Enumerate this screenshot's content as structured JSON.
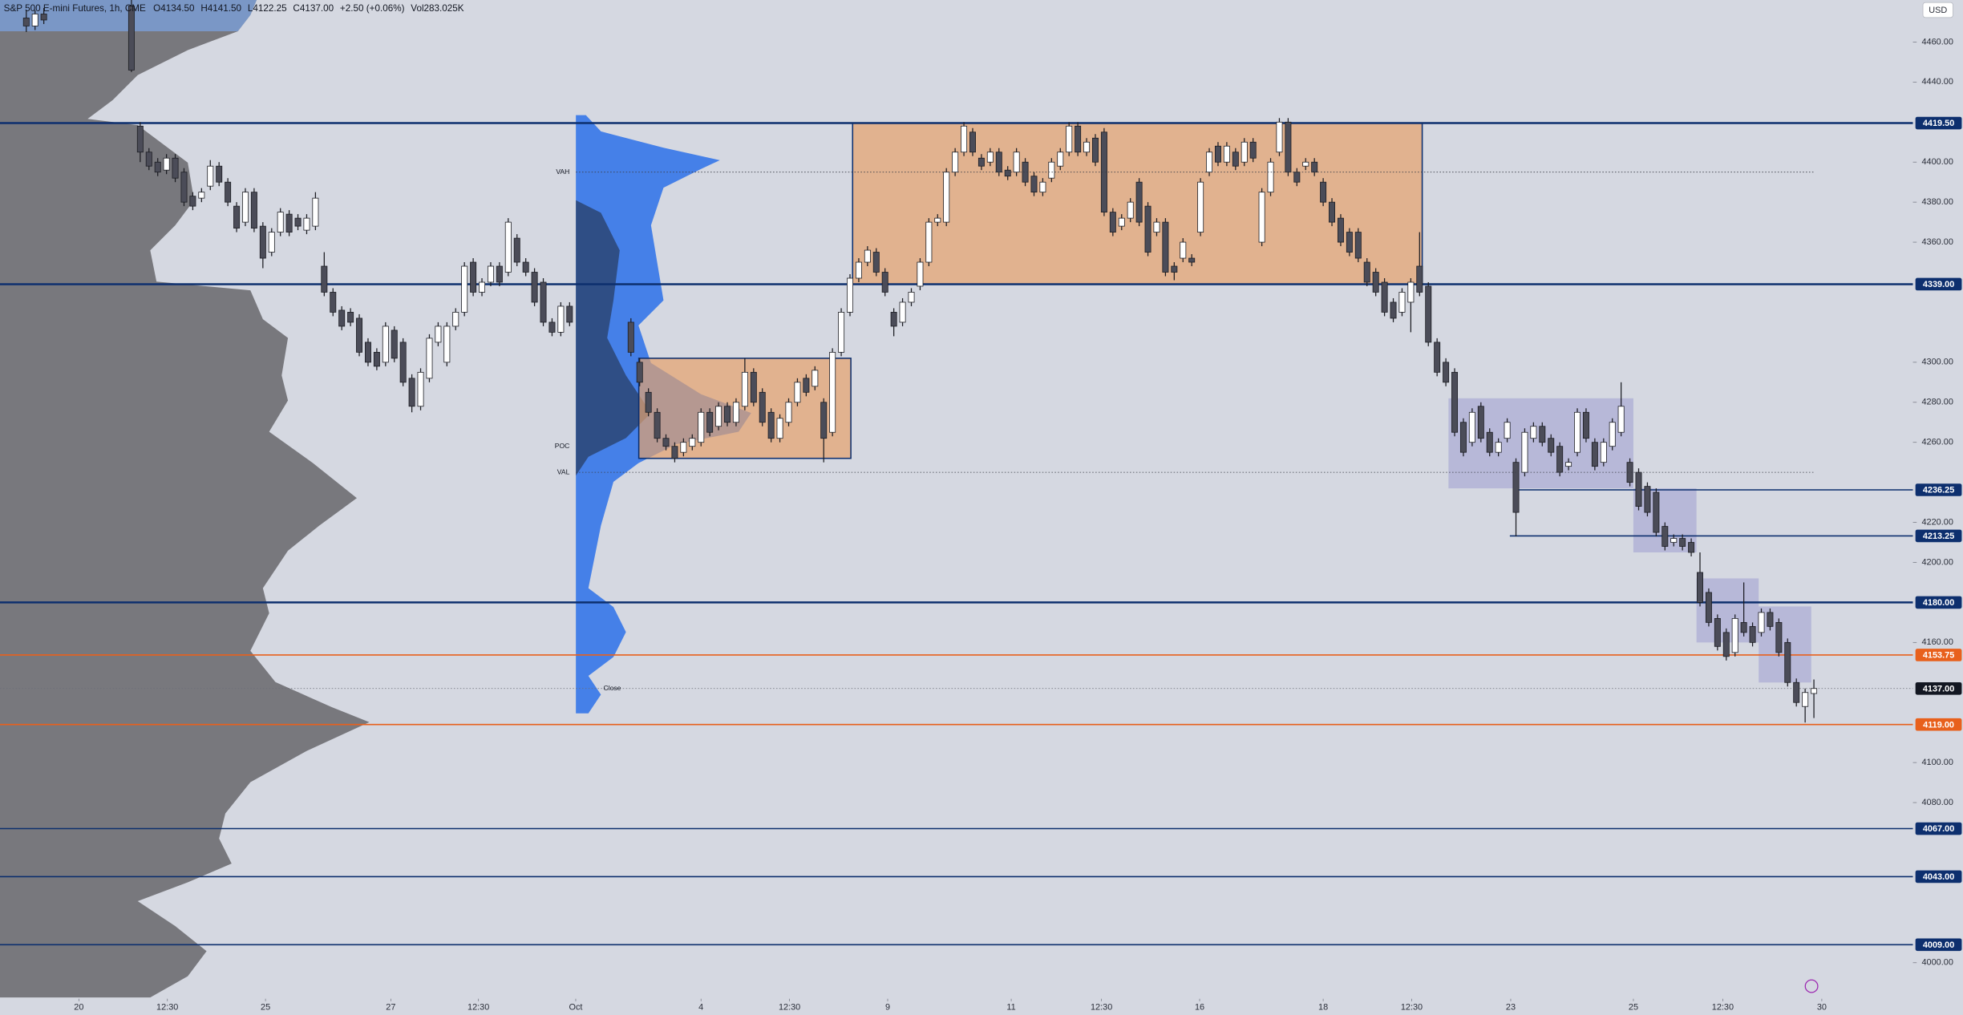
{
  "chart_data": {
    "type": "candlestick",
    "title": "S&P 500 E-mini Futures, 1h, CME",
    "ohlc_text": [
      "O4134.50",
      "H4141.50",
      "L4122.25",
      "C4137.00",
      "+2.50 (+0.06%)",
      "Vol283.025K"
    ],
    "currency": "USD",
    "up_color": "#ffffff",
    "down_color": "#4b4c58",
    "wick_color": "#1b1c22",
    "xlim": [
      0,
      218.3
    ],
    "ylim": [
      3982,
      4481
    ],
    "xticks": [
      {
        "value": 9,
        "label": "20"
      },
      {
        "value": 19.1,
        "label": "12:30"
      },
      {
        "value": 30.3,
        "label": "25"
      },
      {
        "value": 44.6,
        "label": "27"
      },
      {
        "value": 54.6,
        "label": "12:30"
      },
      {
        "value": 65.7,
        "label": "Oct"
      },
      {
        "value": 80,
        "label": "4"
      },
      {
        "value": 90.1,
        "label": "12:30"
      },
      {
        "value": 101.3,
        "label": "9"
      },
      {
        "value": 115.4,
        "label": "11"
      },
      {
        "value": 125.7,
        "label": "12:30"
      },
      {
        "value": 136.9,
        "label": "16"
      },
      {
        "value": 151,
        "label": "18"
      },
      {
        "value": 161.1,
        "label": "12:30"
      },
      {
        "value": 172.4,
        "label": "23"
      },
      {
        "value": 186.4,
        "label": "25"
      },
      {
        "value": 196.6,
        "label": "12:30"
      },
      {
        "value": 207.9,
        "label": "30"
      }
    ],
    "yticks": [
      {
        "value": 4460,
        "label": "4460.00"
      },
      {
        "value": 4440,
        "label": "4440.00"
      },
      {
        "value": 4400,
        "label": "4400.00"
      },
      {
        "value": 4380,
        "label": "4380.00"
      },
      {
        "value": 4360,
        "label": "4360.00"
      },
      {
        "value": 4300,
        "label": "4300.00"
      },
      {
        "value": 4280,
        "label": "4280.00"
      },
      {
        "value": 4260,
        "label": "4260.00"
      },
      {
        "value": 4220,
        "label": "4220.00"
      },
      {
        "value": 4200,
        "label": "4200.00"
      },
      {
        "value": 4160,
        "label": "4160.00"
      },
      {
        "value": 4100,
        "label": "4100.00"
      },
      {
        "value": 4080,
        "label": "4080.00"
      },
      {
        "value": 4000,
        "label": "4000.00"
      }
    ],
    "levels": [
      {
        "value": 4419.5,
        "label": "4419.50",
        "color": "#0d2f6e",
        "style": "thick"
      },
      {
        "value": 4339,
        "label": "4339.00",
        "color": "#0d2f6e",
        "style": "thick"
      },
      {
        "value": 4236.25,
        "label": "4236.25",
        "color": "#0d2f6e",
        "style": "solid",
        "start": 173.3
      },
      {
        "value": 4213.25,
        "label": "4213.25",
        "color": "#0d2f6e",
        "style": "solid",
        "start": 172.3
      },
      {
        "value": 4180,
        "label": "4180.00",
        "color": "#0d2f6e",
        "style": "thick"
      },
      {
        "value": 4153.75,
        "label": "4153.75",
        "color": "#e8601c",
        "style": "solid"
      },
      {
        "value": 4137,
        "label": "4137.00",
        "color": "#131722",
        "style": "dotted"
      },
      {
        "value": 4119,
        "label": "4119.00",
        "color": "#e8601c",
        "style": "solid"
      },
      {
        "value": 4067,
        "label": "4067.00",
        "color": "#0d2f6e",
        "style": "solid"
      },
      {
        "value": 4043,
        "label": "4043.00",
        "color": "#0d2f6e",
        "style": "solid"
      },
      {
        "value": 4009,
        "label": "4009.00",
        "color": "#0d2f6e",
        "style": "solid"
      }
    ],
    "zones": [
      {
        "x": [
          97.3,
          162.3
        ],
        "y": [
          4339,
          4419.5
        ],
        "color": "#e6a36c"
      },
      {
        "x": [
          72.9,
          97.1
        ],
        "y": [
          4252,
          4302
        ],
        "color": "#e6a36c"
      },
      {
        "x": [
          165.3,
          186.4
        ],
        "y": [
          4237,
          4282
        ],
        "color": "#a9abd4"
      },
      {
        "x": [
          186.4,
          193.6
        ],
        "y": [
          4205,
          4237
        ],
        "color": "#a9abd4"
      },
      {
        "x": [
          193.6,
          200.7
        ],
        "y": [
          4160,
          4192
        ],
        "color": "#a9abd4"
      },
      {
        "x": [
          200.7,
          206.7
        ],
        "y": [
          4140,
          4178
        ],
        "color": "#a9abd4"
      }
    ],
    "annotations": [
      {
        "text": "VAH",
        "value": 4395
      },
      {
        "text": "POC",
        "value": 4258
      },
      {
        "text": "VAL",
        "value": 4245
      },
      {
        "text": "Close",
        "value": 4137
      }
    ],
    "x": [
      3,
      4,
      5,
      15,
      16,
      17,
      18,
      19,
      20,
      21,
      22,
      23,
      24,
      25,
      26,
      27,
      28,
      29,
      30,
      31,
      32,
      33,
      34,
      35,
      36,
      37,
      38,
      39,
      40,
      41,
      42,
      43,
      44,
      45,
      46,
      47,
      48,
      49,
      50,
      51,
      52,
      53,
      54,
      55,
      56,
      57,
      58,
      59,
      60,
      61,
      62,
      63,
      64,
      65,
      72,
      73,
      74,
      75,
      76,
      77,
      78,
      79,
      80,
      81,
      82,
      83,
      84,
      85,
      86,
      87,
      88,
      89,
      90,
      91,
      92,
      93,
      94,
      95,
      96,
      97,
      98,
      99,
      100,
      101,
      102,
      103,
      104,
      105,
      106,
      107,
      108,
      109,
      110,
      111,
      112,
      113,
      114,
      115,
      116,
      117,
      118,
      119,
      120,
      121,
      122,
      123,
      124,
      125,
      126,
      127,
      128,
      129,
      130,
      131,
      132,
      133,
      134,
      135,
      136,
      137,
      138,
      139,
      140,
      141,
      142,
      143,
      144,
      145,
      146,
      147,
      148,
      149,
      150,
      151,
      152,
      153,
      154,
      155,
      156,
      157,
      158,
      159,
      160,
      161,
      162,
      163,
      164,
      165,
      166,
      167,
      168,
      169,
      170,
      171,
      172,
      173,
      174,
      175,
      176,
      177,
      178,
      179,
      180,
      181,
      182,
      183,
      184,
      185,
      186,
      187,
      188,
      189,
      190,
      191,
      192,
      193,
      194,
      195,
      196,
      197,
      198,
      199,
      200,
      201,
      202,
      203,
      204,
      205,
      206,
      207
    ],
    "open": [
      4472,
      4468,
      4474,
      4478,
      4418,
      4405,
      4400,
      4396,
      4402,
      4395,
      4383,
      4382,
      4388,
      4398,
      4390,
      4378,
      4370,
      4385,
      4368,
      4355,
      4365,
      4374,
      4372,
      4366,
      4368,
      4348,
      4335,
      4326,
      4325,
      4322,
      4310,
      4305,
      4300,
      4316,
      4310,
      4292,
      4278,
      4292,
      4310,
      4300,
      4318,
      4325,
      4350,
      4335,
      4340,
      4348,
      4345,
      4362,
      4350,
      4345,
      4340,
      4320,
      4315,
      4328,
      4320,
      4300,
      4285,
      4275,
      4262,
      4258,
      4255,
      4258,
      4260,
      4275,
      4268,
      4278,
      4270,
      4278,
      4295,
      4285,
      4275,
      4262,
      4270,
      4280,
      4292,
      4288,
      4280,
      4265,
      4305,
      4325,
      4342,
      4350,
      4355,
      4345,
      4325,
      4320,
      4330,
      4338,
      4350,
      4370,
      4370,
      4395,
      4405,
      4415,
      4402,
      4400,
      4405,
      4396,
      4395,
      4400,
      4393,
      4385,
      4392,
      4398,
      4405,
      4418,
      4405,
      4412,
      4415,
      4375,
      4368,
      4372,
      4390,
      4378,
      4365,
      4370,
      4348,
      4352,
      4352,
      4365,
      4395,
      4408,
      4400,
      4405,
      4400,
      4410,
      4360,
      4385,
      4405,
      4420,
      4395,
      4398,
      4400,
      4390,
      4380,
      4372,
      4365,
      4365,
      4350,
      4345,
      4340,
      4330,
      4325,
      4330,
      4348,
      4338,
      4310,
      4300,
      4295,
      4270,
      4260,
      4278,
      4265,
      4255,
      4262,
      4250,
      4245,
      4262,
      4268,
      4262,
      4258,
      4248,
      4255,
      4275,
      4260,
      4250,
      4258,
      4265,
      4250,
      4245,
      4238,
      4235,
      4218,
      4210,
      4212,
      4210,
      4195,
      4185,
      4172,
      4165,
      4155,
      4170,
      4168,
      4165,
      4175,
      4170,
      4160,
      4140,
      4128,
      4134.5
    ],
    "high": [
      4476,
      4476,
      4477,
      4481,
      4420,
      4407,
      4402,
      4404,
      4404,
      4397,
      4385,
      4387,
      4401,
      4400,
      4392,
      4380,
      4387,
      4387,
      4370,
      4367,
      4377,
      4376,
      4374,
      4374,
      4385,
      4355,
      4337,
      4328,
      4327,
      4324,
      4312,
      4307,
      4320,
      4318,
      4312,
      4294,
      4297,
      4314,
      4320,
      4320,
      4327,
      4350,
      4352,
      4342,
      4350,
      4350,
      4372,
      4364,
      4352,
      4347,
      4342,
      4322,
      4330,
      4330,
      4322,
      4302,
      4287,
      4277,
      4264,
      4260,
      4262,
      4264,
      4277,
      4277,
      4280,
      4280,
      4282,
      4302,
      4297,
      4287,
      4277,
      4274,
      4282,
      4292,
      4294,
      4298,
      4282,
      4307,
      4327,
      4344,
      4352,
      4358,
      4357,
      4347,
      4327,
      4332,
      4337,
      4352,
      4372,
      4374,
      4397,
      4407,
      4420,
      4417,
      4404,
      4407,
      4407,
      4398,
      4407,
      4402,
      4395,
      4392,
      4402,
      4407,
      4420,
      4420,
      4412,
      4414,
      4417,
      4377,
      4374,
      4382,
      4392,
      4380,
      4372,
      4372,
      4350,
      4362,
      4354,
      4392,
      4407,
      4410,
      4410,
      4407,
      4412,
      4412,
      4387,
      4402,
      4422,
      4422,
      4397,
      4402,
      4402,
      4392,
      4382,
      4374,
      4367,
      4367,
      4352,
      4347,
      4342,
      4332,
      4337,
      4342,
      4365,
      4340,
      4312,
      4302,
      4297,
      4272,
      4277,
      4280,
      4267,
      4262,
      4272,
      4252,
      4267,
      4270,
      4270,
      4264,
      4260,
      4252,
      4277,
      4277,
      4262,
      4262,
      4272,
      4290,
      4252,
      4247,
      4240,
      4237,
      4220,
      4214,
      4214,
      4212,
      4205,
      4187,
      4174,
      4167,
      4174,
      4190,
      4170,
      4177,
      4177,
      4172,
      4162,
      4142,
      4137,
      4141.5
    ],
    "low": [
      4465,
      4466,
      4469,
      4445,
      4400,
      4396,
      4393,
      4394,
      4390,
      4378,
      4376,
      4380,
      4386,
      4388,
      4378,
      4365,
      4368,
      4365,
      4347,
      4353,
      4363,
      4363,
      4366,
      4364,
      4366,
      4333,
      4323,
      4316,
      4318,
      4303,
      4298,
      4296,
      4298,
      4300,
      4288,
      4275,
      4276,
      4290,
      4308,
      4298,
      4316,
      4323,
      4333,
      4333,
      4338,
      4338,
      4343,
      4348,
      4343,
      4328,
      4318,
      4313,
      4313,
      4318,
      4303,
      4288,
      4273,
      4260,
      4256,
      4250,
      4253,
      4256,
      4258,
      4263,
      4266,
      4268,
      4268,
      4276,
      4278,
      4268,
      4260,
      4260,
      4268,
      4278,
      4283,
      4286,
      4250,
      4263,
      4303,
      4323,
      4340,
      4348,
      4343,
      4333,
      4313,
      4318,
      4328,
      4336,
      4348,
      4368,
      4368,
      4393,
      4403,
      4403,
      4396,
      4398,
      4393,
      4391,
      4393,
      4388,
      4383,
      4383,
      4390,
      4396,
      4403,
      4403,
      4403,
      4398,
      4373,
      4363,
      4366,
      4370,
      4368,
      4353,
      4363,
      4343,
      4341,
      4350,
      4348,
      4363,
      4393,
      4398,
      4398,
      4396,
      4398,
      4400,
      4358,
      4383,
      4403,
      4393,
      4388,
      4396,
      4393,
      4378,
      4368,
      4358,
      4353,
      4350,
      4338,
      4333,
      4323,
      4320,
      4323,
      4315,
      4333,
      4308,
      4293,
      4288,
      4263,
      4253,
      4258,
      4260,
      4253,
      4253,
      4260,
      4213,
      4243,
      4260,
      4258,
      4253,
      4243,
      4246,
      4253,
      4260,
      4246,
      4248,
      4256,
      4263,
      4238,
      4226,
      4223,
      4213,
      4206,
      4208,
      4206,
      4203,
      4178,
      4168,
      4156,
      4151,
      4153,
      4163,
      4158,
      4163,
      4166,
      4153,
      4138,
      4128,
      4120,
      4122.25
    ],
    "close": [
      4468,
      4474,
      4471,
      4446,
      4405,
      4398,
      4395,
      4402,
      4392,
      4380,
      4378,
      4385,
      4398,
      4390,
      4380,
      4367,
      4385,
      4367,
      4352,
      4365,
      4375,
      4365,
      4368,
      4372,
      4382,
      4335,
      4325,
      4318,
      4320,
      4305,
      4300,
      4298,
      4318,
      4302,
      4290,
      4278,
      4295,
      4312,
      4318,
      4318,
      4325,
      4348,
      4335,
      4340,
      4348,
      4340,
      4370,
      4350,
      4345,
      4330,
      4320,
      4315,
      4328,
      4320,
      4305,
      4290,
      4275,
      4262,
      4258,
      4252,
      4260,
      4262,
      4275,
      4265,
      4278,
      4270,
      4280,
      4295,
      4280,
      4270,
      4262,
      4272,
      4280,
      4290,
      4285,
      4296,
      4262,
      4305,
      4325,
      4342,
      4350,
      4356,
      4345,
      4335,
      4318,
      4330,
      4335,
      4350,
      4370,
      4372,
      4395,
      4405,
      4418,
      4405,
      4398,
      4405,
      4395,
      4393,
      4405,
      4390,
      4385,
      4390,
      4400,
      4405,
      4418,
      4405,
      4410,
      4400,
      4375,
      4365,
      4372,
      4380,
      4370,
      4355,
      4370,
      4345,
      4345,
      4360,
      4350,
      4390,
      4405,
      4400,
      4408,
      4398,
      4410,
      4402,
      4385,
      4400,
      4420,
      4395,
      4390,
      4400,
      4395,
      4380,
      4370,
      4360,
      4355,
      4352,
      4340,
      4335,
      4325,
      4322,
      4335,
      4340,
      4335,
      4310,
      4295,
      4290,
      4265,
      4255,
      4275,
      4262,
      4255,
      4260,
      4270,
      4225,
      4265,
      4268,
      4260,
      4255,
      4245,
      4250,
      4275,
      4262,
      4248,
      4260,
      4270,
      4278,
      4240,
      4228,
      4225,
      4215,
      4208,
      4212,
      4208,
      4205,
      4180,
      4170,
      4158,
      4153,
      4172,
      4165,
      4160,
      4175,
      4168,
      4155,
      4140,
      4130,
      4135,
      4137
    ]
  }
}
